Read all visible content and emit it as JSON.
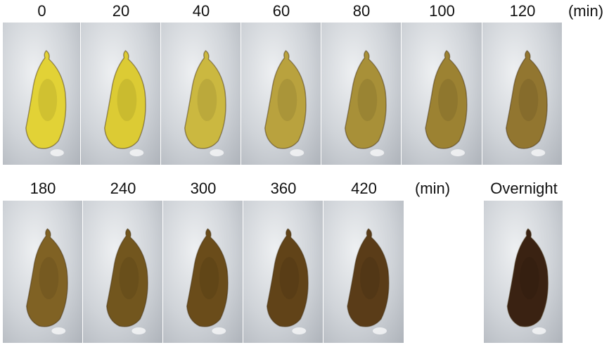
{
  "top_row": {
    "unit": "(min)",
    "frames": [
      {
        "label": "0",
        "pupa_color": "#e2d236"
      },
      {
        "label": "20",
        "pupa_color": "#dccb34"
      },
      {
        "label": "40",
        "pupa_color": "#cbb840"
      },
      {
        "label": "60",
        "pupa_color": "#b9a23e"
      },
      {
        "label": "80",
        "pupa_color": "#a89038"
      },
      {
        "label": "100",
        "pupa_color": "#9c8232"
      },
      {
        "label": "120",
        "pupa_color": "#927630"
      }
    ]
  },
  "bottom_row": {
    "unit": "(min)",
    "frames": [
      {
        "label": "180",
        "pupa_color": "#806224"
      },
      {
        "label": "240",
        "pupa_color": "#72561e"
      },
      {
        "label": "300",
        "pupa_color": "#6a4c1a"
      },
      {
        "label": "360",
        "pupa_color": "#614318"
      },
      {
        "label": "420",
        "pupa_color": "#5a3c18"
      }
    ]
  },
  "overnight": {
    "label": "Overnight",
    "pupa_color": "#3a2212"
  }
}
